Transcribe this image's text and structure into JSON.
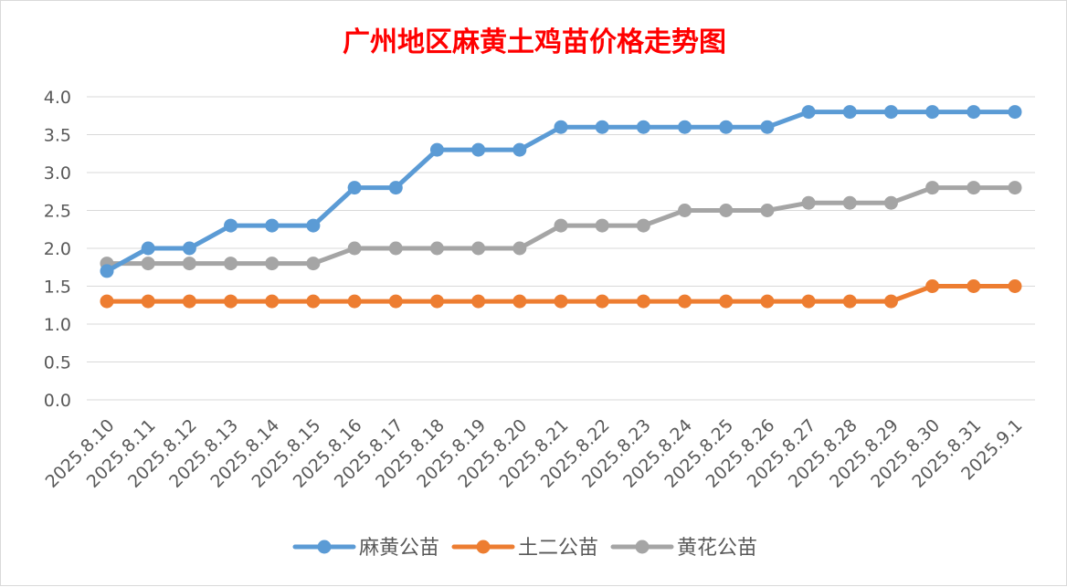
{
  "chart_data": {
    "type": "line",
    "title": "广州地区麻黄土鸡苗价格走势图",
    "x": [
      "2025.8.10",
      "2025.8.11",
      "2025.8.12",
      "2025.8.13",
      "2025.8.14",
      "2025.8.15",
      "2025.8.16",
      "2025.8.17",
      "2025.8.18",
      "2025.8.19",
      "2025.8.20",
      "2025.8.21",
      "2025.8.22",
      "2025.8.23",
      "2025.8.24",
      "2025.8.25",
      "2025.8.26",
      "2025.8.27",
      "2025.8.28",
      "2025.8.29",
      "2025.8.30",
      "2025.8.31",
      "2025.9.1"
    ],
    "yticks": [
      "0.0",
      "0.5",
      "1.0",
      "1.5",
      "2.0",
      "2.5",
      "3.0",
      "3.5",
      "4.0"
    ],
    "ylim": [
      0,
      4
    ],
    "grid": true,
    "legend_position": "bottom",
    "series": [
      {
        "name": "麻黄公苗",
        "color": "#5b9bd5",
        "values": [
          1.7,
          2.0,
          2.0,
          2.3,
          2.3,
          2.3,
          2.8,
          2.8,
          3.3,
          3.3,
          3.3,
          3.6,
          3.6,
          3.6,
          3.6,
          3.6,
          3.6,
          3.8,
          3.8,
          3.8,
          3.8,
          3.8,
          3.8
        ]
      },
      {
        "name": "土二公苗",
        "color": "#ed7d31",
        "values": [
          1.3,
          1.3,
          1.3,
          1.3,
          1.3,
          1.3,
          1.3,
          1.3,
          1.3,
          1.3,
          1.3,
          1.3,
          1.3,
          1.3,
          1.3,
          1.3,
          1.3,
          1.3,
          1.3,
          1.3,
          1.5,
          1.5,
          1.5
        ]
      },
      {
        "name": "黄花公苗",
        "color": "#a5a5a5",
        "values": [
          1.8,
          1.8,
          1.8,
          1.8,
          1.8,
          1.8,
          2.0,
          2.0,
          2.0,
          2.0,
          2.0,
          2.3,
          2.3,
          2.3,
          2.5,
          2.5,
          2.5,
          2.6,
          2.6,
          2.6,
          2.8,
          2.8,
          2.8
        ]
      }
    ]
  }
}
